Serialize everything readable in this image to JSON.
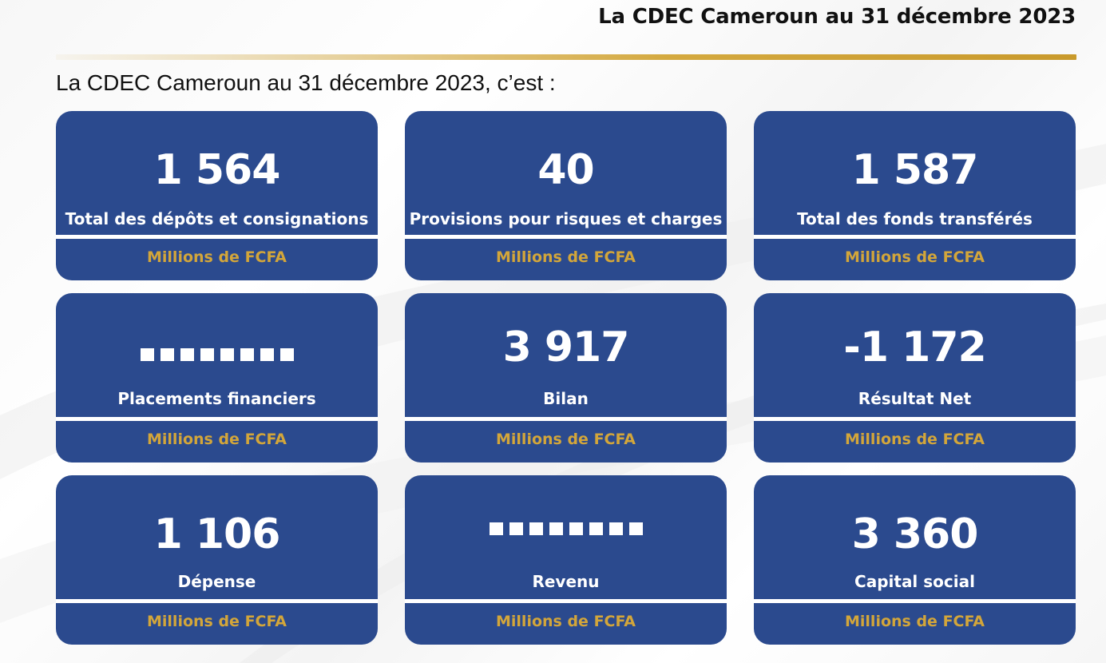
{
  "header": {
    "title": "La CDEC Cameroun au 31 décembre 2023"
  },
  "intro": "La CDEC Cameroun au 31 décembre 2023, c’est :",
  "colors": {
    "card_bg": "#2b4a8e",
    "gold": "#d3a63a",
    "text": "#111111"
  },
  "cards": [
    {
      "value": "1 564",
      "label": "Total des dépôts et consignations",
      "unit": "Millions de FCFA"
    },
    {
      "value": "40",
      "label": "Provisions pour risques et charges",
      "unit": "Millions de FCFA"
    },
    {
      "value": "1 587",
      "label": "Total des fonds transférés",
      "unit": "Millions de FCFA"
    },
    {
      "value": "",
      "label": "Placements financiers",
      "unit": "Millions de FCFA"
    },
    {
      "value": "3 917",
      "label": "Bilan",
      "unit": "Millions de FCFA"
    },
    {
      "value": "-1 172",
      "label": "Résultat Net",
      "unit": "Millions de FCFA"
    },
    {
      "value": "1 106",
      "label": "Dépense",
      "unit": "Millions de FCFA"
    },
    {
      "value": "",
      "label": "Revenu",
      "unit": "Millions de FCFA"
    },
    {
      "value": "3 360",
      "label": "Capital social",
      "unit": "Millions de FCFA"
    }
  ]
}
